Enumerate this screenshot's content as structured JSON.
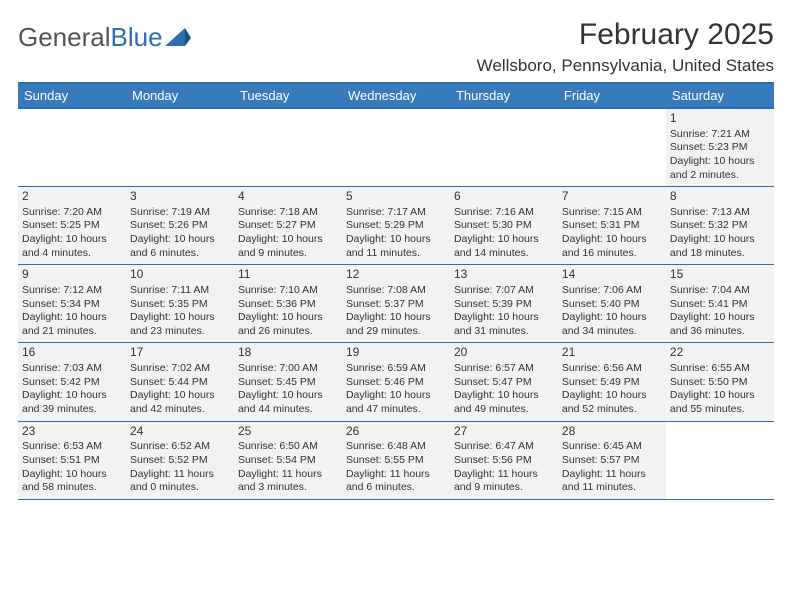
{
  "logo": {
    "general": "General",
    "blue": "Blue"
  },
  "title": {
    "month": "February 2025",
    "location": "Wellsboro, Pennsylvania, United States"
  },
  "colors": {
    "header_bg": "#377bbd",
    "header_text": "#ffffff",
    "cell_bg": "#f2f2f2",
    "border": "#2f6fb0",
    "text": "#333333",
    "logo_blue": "#2f6fb0",
    "logo_gray": "#555555"
  },
  "day_labels": [
    "Sunday",
    "Monday",
    "Tuesday",
    "Wednesday",
    "Thursday",
    "Friday",
    "Saturday"
  ],
  "weeks": [
    [
      {
        "blank": true
      },
      {
        "blank": true
      },
      {
        "blank": true
      },
      {
        "blank": true
      },
      {
        "blank": true
      },
      {
        "blank": true
      },
      {
        "day": "1",
        "sunrise": "Sunrise: 7:21 AM",
        "sunset": "Sunset: 5:23 PM",
        "dl1": "Daylight: 10 hours",
        "dl2": "and 2 minutes."
      }
    ],
    [
      {
        "day": "2",
        "sunrise": "Sunrise: 7:20 AM",
        "sunset": "Sunset: 5:25 PM",
        "dl1": "Daylight: 10 hours",
        "dl2": "and 4 minutes."
      },
      {
        "day": "3",
        "sunrise": "Sunrise: 7:19 AM",
        "sunset": "Sunset: 5:26 PM",
        "dl1": "Daylight: 10 hours",
        "dl2": "and 6 minutes."
      },
      {
        "day": "4",
        "sunrise": "Sunrise: 7:18 AM",
        "sunset": "Sunset: 5:27 PM",
        "dl1": "Daylight: 10 hours",
        "dl2": "and 9 minutes."
      },
      {
        "day": "5",
        "sunrise": "Sunrise: 7:17 AM",
        "sunset": "Sunset: 5:29 PM",
        "dl1": "Daylight: 10 hours",
        "dl2": "and 11 minutes."
      },
      {
        "day": "6",
        "sunrise": "Sunrise: 7:16 AM",
        "sunset": "Sunset: 5:30 PM",
        "dl1": "Daylight: 10 hours",
        "dl2": "and 14 minutes."
      },
      {
        "day": "7",
        "sunrise": "Sunrise: 7:15 AM",
        "sunset": "Sunset: 5:31 PM",
        "dl1": "Daylight: 10 hours",
        "dl2": "and 16 minutes."
      },
      {
        "day": "8",
        "sunrise": "Sunrise: 7:13 AM",
        "sunset": "Sunset: 5:32 PM",
        "dl1": "Daylight: 10 hours",
        "dl2": "and 18 minutes."
      }
    ],
    [
      {
        "day": "9",
        "sunrise": "Sunrise: 7:12 AM",
        "sunset": "Sunset: 5:34 PM",
        "dl1": "Daylight: 10 hours",
        "dl2": "and 21 minutes."
      },
      {
        "day": "10",
        "sunrise": "Sunrise: 7:11 AM",
        "sunset": "Sunset: 5:35 PM",
        "dl1": "Daylight: 10 hours",
        "dl2": "and 23 minutes."
      },
      {
        "day": "11",
        "sunrise": "Sunrise: 7:10 AM",
        "sunset": "Sunset: 5:36 PM",
        "dl1": "Daylight: 10 hours",
        "dl2": "and 26 minutes."
      },
      {
        "day": "12",
        "sunrise": "Sunrise: 7:08 AM",
        "sunset": "Sunset: 5:37 PM",
        "dl1": "Daylight: 10 hours",
        "dl2": "and 29 minutes."
      },
      {
        "day": "13",
        "sunrise": "Sunrise: 7:07 AM",
        "sunset": "Sunset: 5:39 PM",
        "dl1": "Daylight: 10 hours",
        "dl2": "and 31 minutes."
      },
      {
        "day": "14",
        "sunrise": "Sunrise: 7:06 AM",
        "sunset": "Sunset: 5:40 PM",
        "dl1": "Daylight: 10 hours",
        "dl2": "and 34 minutes."
      },
      {
        "day": "15",
        "sunrise": "Sunrise: 7:04 AM",
        "sunset": "Sunset: 5:41 PM",
        "dl1": "Daylight: 10 hours",
        "dl2": "and 36 minutes."
      }
    ],
    [
      {
        "day": "16",
        "sunrise": "Sunrise: 7:03 AM",
        "sunset": "Sunset: 5:42 PM",
        "dl1": "Daylight: 10 hours",
        "dl2": "and 39 minutes."
      },
      {
        "day": "17",
        "sunrise": "Sunrise: 7:02 AM",
        "sunset": "Sunset: 5:44 PM",
        "dl1": "Daylight: 10 hours",
        "dl2": "and 42 minutes."
      },
      {
        "day": "18",
        "sunrise": "Sunrise: 7:00 AM",
        "sunset": "Sunset: 5:45 PM",
        "dl1": "Daylight: 10 hours",
        "dl2": "and 44 minutes."
      },
      {
        "day": "19",
        "sunrise": "Sunrise: 6:59 AM",
        "sunset": "Sunset: 5:46 PM",
        "dl1": "Daylight: 10 hours",
        "dl2": "and 47 minutes."
      },
      {
        "day": "20",
        "sunrise": "Sunrise: 6:57 AM",
        "sunset": "Sunset: 5:47 PM",
        "dl1": "Daylight: 10 hours",
        "dl2": "and 49 minutes."
      },
      {
        "day": "21",
        "sunrise": "Sunrise: 6:56 AM",
        "sunset": "Sunset: 5:49 PM",
        "dl1": "Daylight: 10 hours",
        "dl2": "and 52 minutes."
      },
      {
        "day": "22",
        "sunrise": "Sunrise: 6:55 AM",
        "sunset": "Sunset: 5:50 PM",
        "dl1": "Daylight: 10 hours",
        "dl2": "and 55 minutes."
      }
    ],
    [
      {
        "day": "23",
        "sunrise": "Sunrise: 6:53 AM",
        "sunset": "Sunset: 5:51 PM",
        "dl1": "Daylight: 10 hours",
        "dl2": "and 58 minutes."
      },
      {
        "day": "24",
        "sunrise": "Sunrise: 6:52 AM",
        "sunset": "Sunset: 5:52 PM",
        "dl1": "Daylight: 11 hours",
        "dl2": "and 0 minutes."
      },
      {
        "day": "25",
        "sunrise": "Sunrise: 6:50 AM",
        "sunset": "Sunset: 5:54 PM",
        "dl1": "Daylight: 11 hours",
        "dl2": "and 3 minutes."
      },
      {
        "day": "26",
        "sunrise": "Sunrise: 6:48 AM",
        "sunset": "Sunset: 5:55 PM",
        "dl1": "Daylight: 11 hours",
        "dl2": "and 6 minutes."
      },
      {
        "day": "27",
        "sunrise": "Sunrise: 6:47 AM",
        "sunset": "Sunset: 5:56 PM",
        "dl1": "Daylight: 11 hours",
        "dl2": "and 9 minutes."
      },
      {
        "day": "28",
        "sunrise": "Sunrise: 6:45 AM",
        "sunset": "Sunset: 5:57 PM",
        "dl1": "Daylight: 11 hours",
        "dl2": "and 11 minutes."
      },
      {
        "blank": true
      }
    ]
  ]
}
